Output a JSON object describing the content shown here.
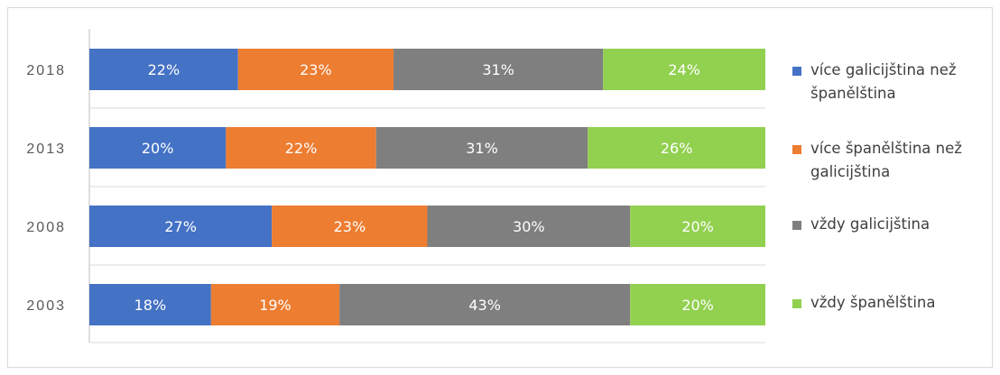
{
  "chart_data": {
    "type": "bar",
    "orientation": "horizontal",
    "stacked": true,
    "percent": true,
    "categories": [
      "2018",
      "2013",
      "2008",
      "2003"
    ],
    "series": [
      {
        "name": "více galicijština než španělština",
        "color": "#4472C4",
        "values": [
          22,
          20,
          27,
          18
        ]
      },
      {
        "name": "více španělština než galicijština",
        "color": "#ED7D31",
        "values": [
          23,
          22,
          23,
          19
        ]
      },
      {
        "name": "vždy galicijština",
        "color": "#7F7F7F",
        "values": [
          31,
          31,
          30,
          43
        ]
      },
      {
        "name": "vždy španělština",
        "color": "#92D050",
        "values": [
          24,
          26,
          20,
          20
        ]
      }
    ],
    "data_labels": [
      [
        "22%",
        "23%",
        "31%",
        "24%"
      ],
      [
        "20%",
        "22%",
        "31%",
        "26%"
      ],
      [
        "27%",
        "23%",
        "30%",
        "20%"
      ],
      [
        "18%",
        "19%",
        "43%",
        "20%"
      ]
    ],
    "xlim": [
      0,
      100
    ],
    "grid": false,
    "legend_position": "right"
  }
}
